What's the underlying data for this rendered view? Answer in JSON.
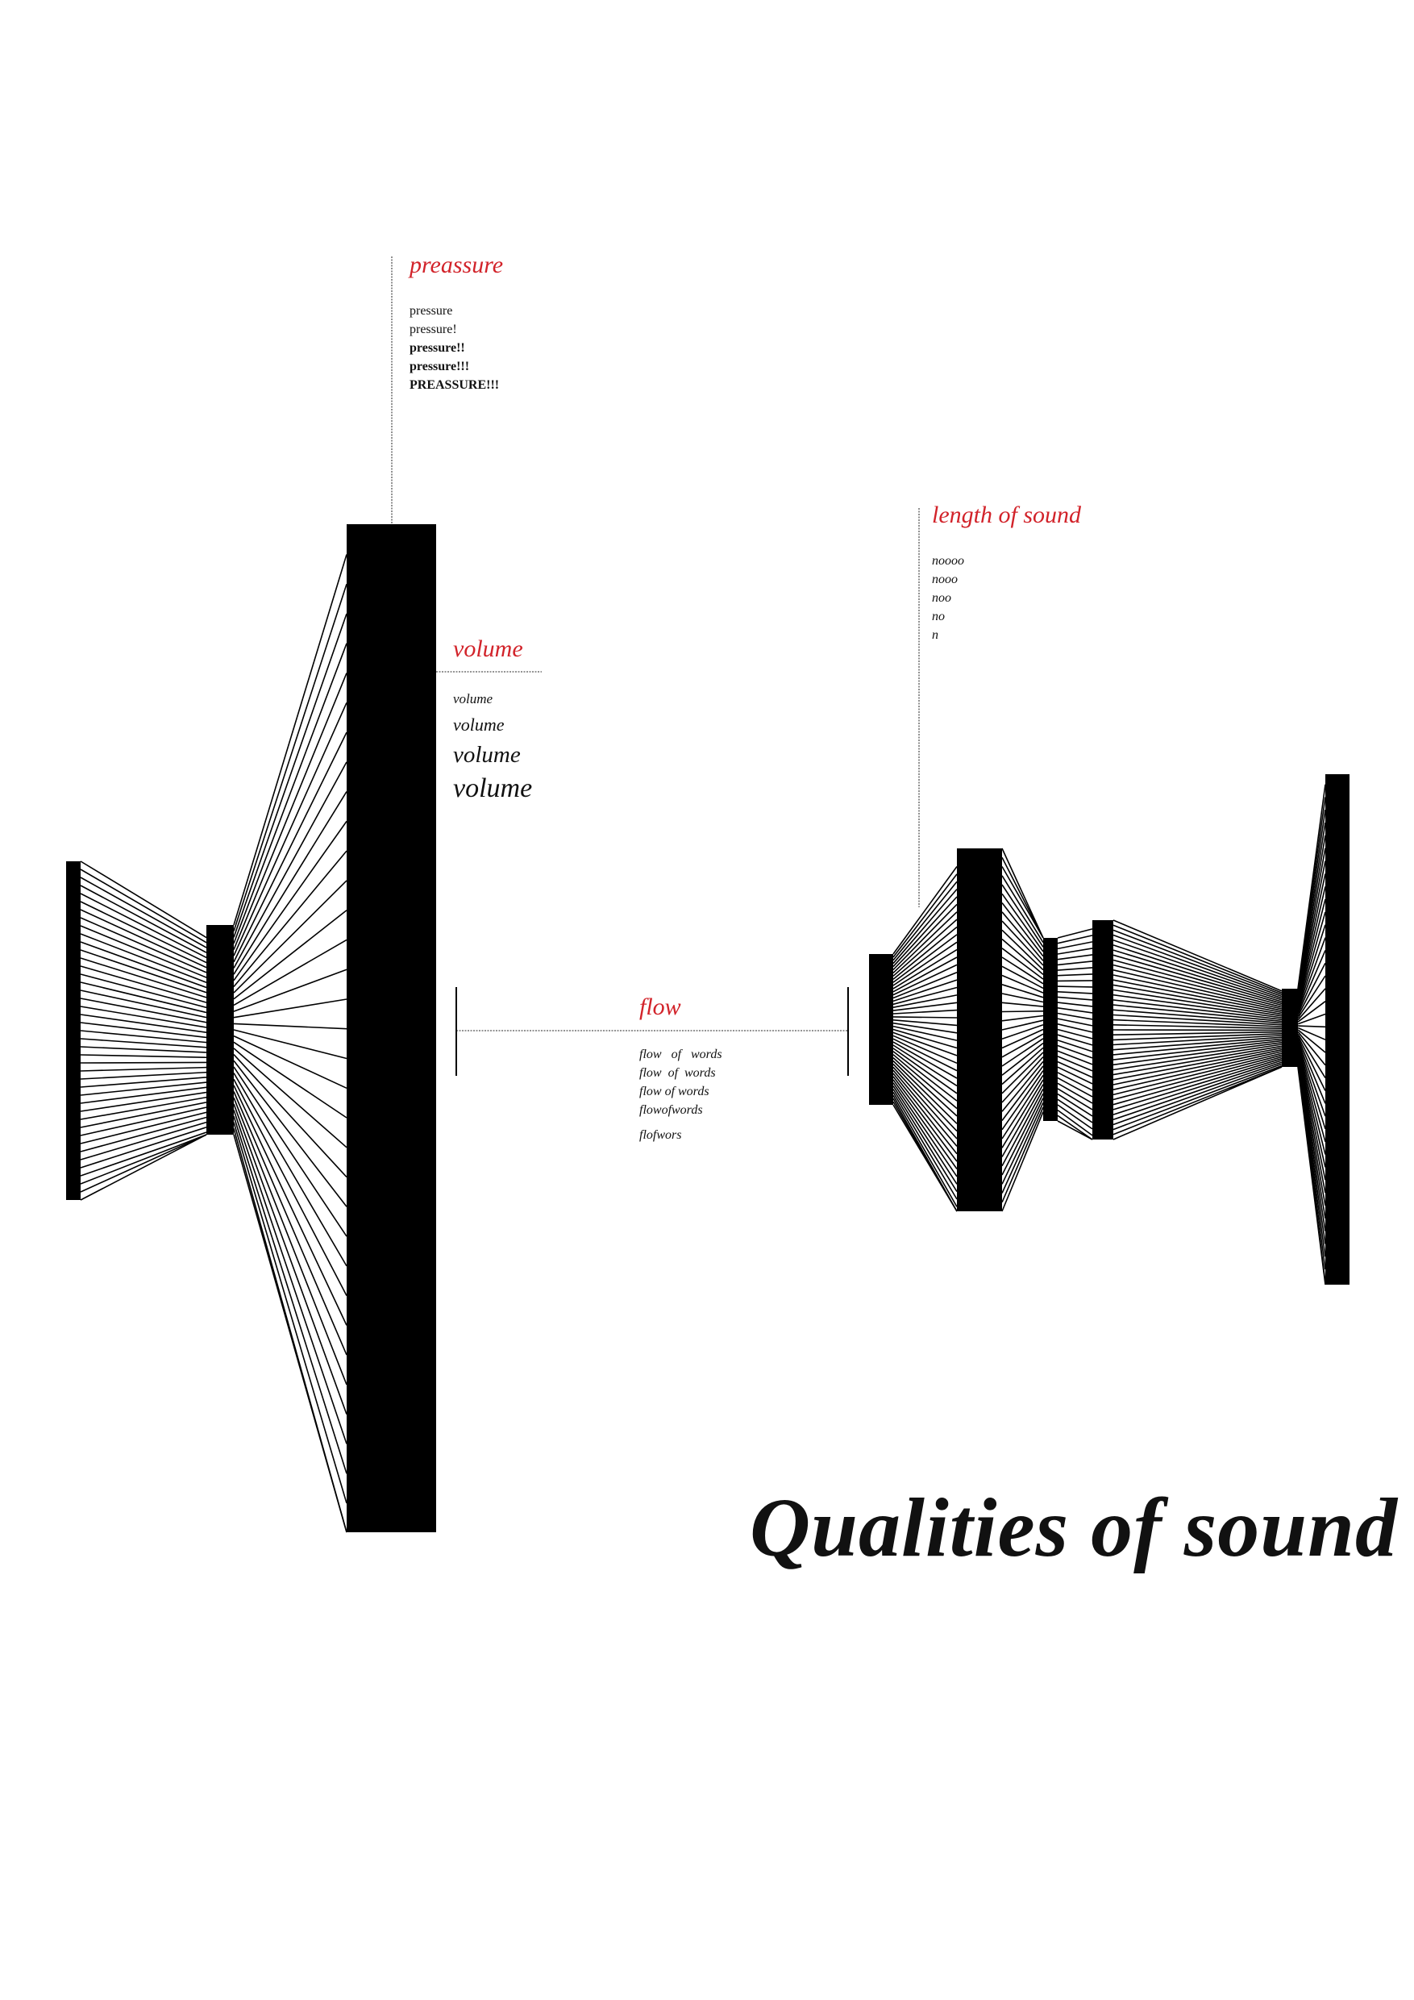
{
  "title": "Qualities of sound",
  "colors": {
    "accent": "#d2232a",
    "ink": "#000000",
    "background": "#ffffff"
  },
  "pressure": {
    "label": "preassure",
    "lines": [
      "pressure",
      "pressure!",
      "pressure!!",
      "pressure!!!",
      "PREASSURE!!!"
    ]
  },
  "volume": {
    "label": "volume",
    "lines": [
      "volume",
      "volume",
      "volume",
      "volume"
    ]
  },
  "flow": {
    "label": "flow",
    "lines": [
      "flow   of   words",
      "flow  of  words",
      "flow of words",
      "flowofwords",
      "flofwors"
    ]
  },
  "length": {
    "label": "length of sound",
    "lines": [
      "noooo",
      "nooo",
      "noo",
      "no",
      "n"
    ]
  }
}
